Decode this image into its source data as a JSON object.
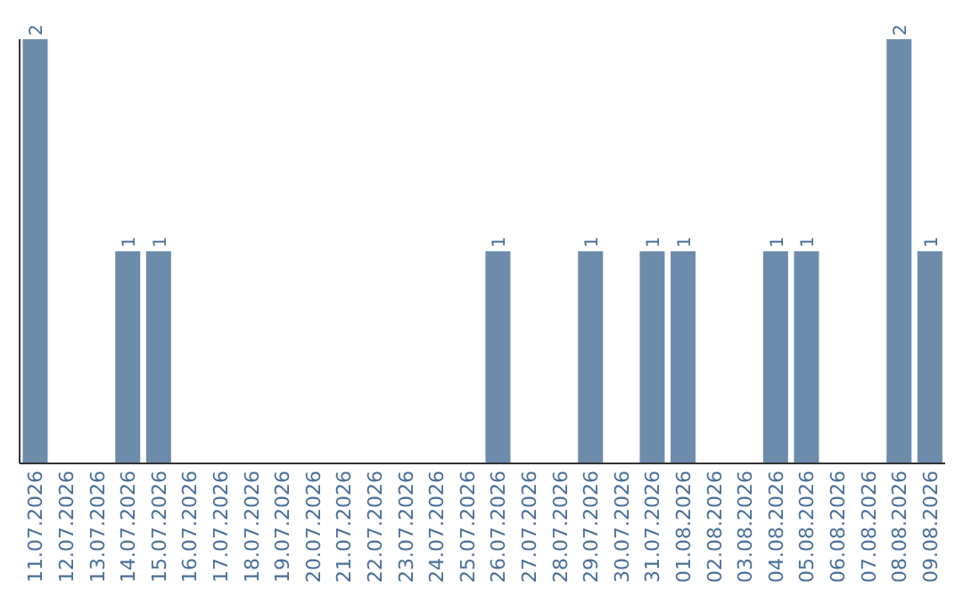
{
  "chart_data": {
    "type": "bar",
    "categories": [
      "11.07.2026",
      "12.07.2026",
      "13.07.2026",
      "14.07.2026",
      "15.07.2026",
      "16.07.2026",
      "17.07.2026",
      "18.07.2026",
      "19.07.2026",
      "20.07.2026",
      "21.07.2026",
      "22.07.2026",
      "23.07.2026",
      "24.07.2026",
      "25.07.2026",
      "26.07.2026",
      "27.07.2026",
      "28.07.2026",
      "29.07.2026",
      "30.07.2026",
      "31.07.2026",
      "01.08.2026",
      "02.08.2026",
      "03.08.2026",
      "04.08.2026",
      "05.08.2026",
      "06.08.2026",
      "07.08.2026",
      "08.08.2026",
      "09.08.2026"
    ],
    "values": [
      2,
      0,
      0,
      1,
      1,
      0,
      0,
      0,
      0,
      0,
      0,
      0,
      0,
      0,
      0,
      1,
      0,
      0,
      1,
      0,
      1,
      1,
      0,
      0,
      1,
      1,
      0,
      0,
      2,
      1
    ],
    "value_labels": [
      "2",
      null,
      null,
      "1",
      "1",
      null,
      null,
      null,
      null,
      null,
      null,
      null,
      null,
      null,
      null,
      "1",
      null,
      null,
      "1",
      null,
      "1",
      "1",
      null,
      null,
      "1",
      "1",
      null,
      null,
      "2",
      "1"
    ],
    "color": "#6d8cab",
    "ylim": [
      0,
      2
    ],
    "tick_labels": "x"
  }
}
